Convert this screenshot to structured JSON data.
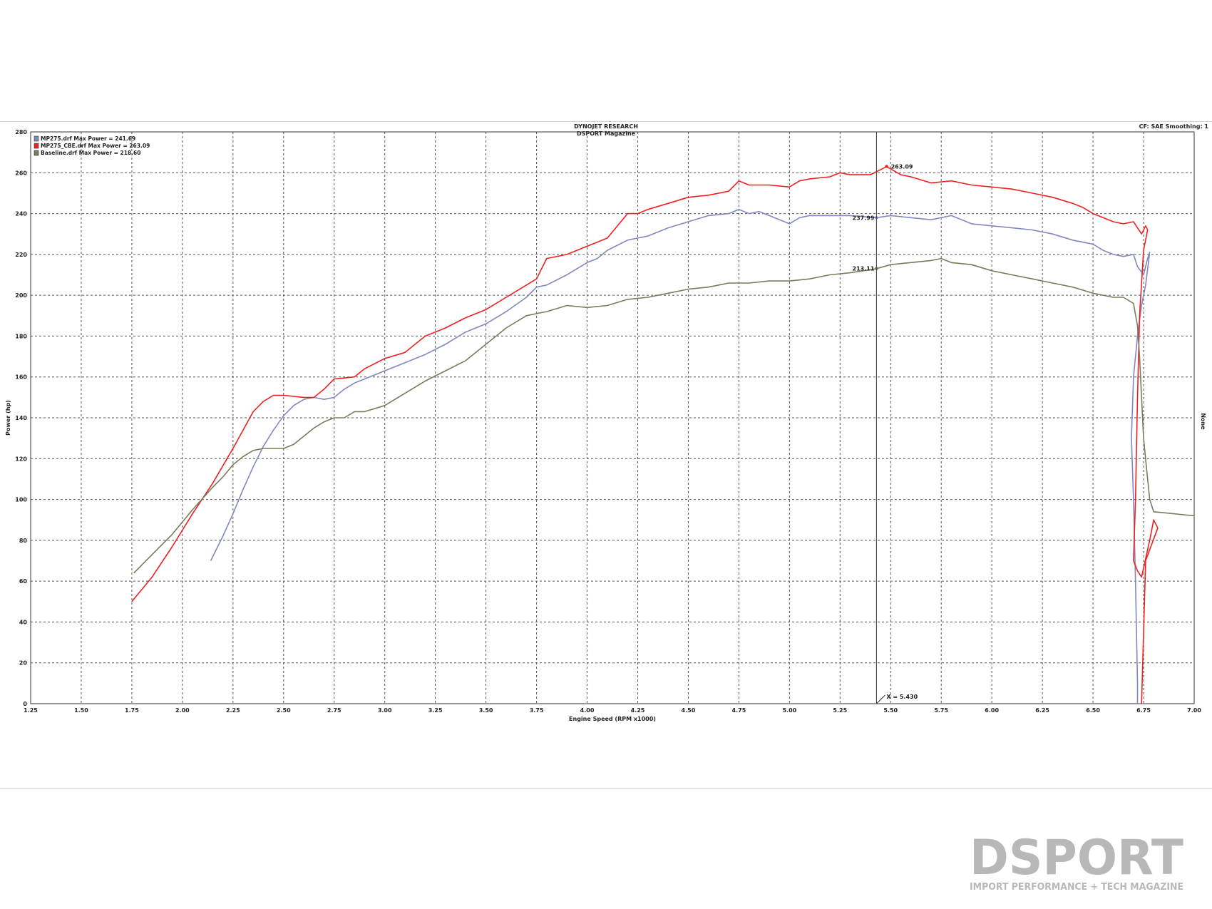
{
  "header": {
    "title_line1": "DYNOJET RESEARCH",
    "title_line2": "DSPORT Magazine",
    "settings": "CF: SAE  Smoothing: 1"
  },
  "brand": {
    "logo_text": "DSPORT",
    "tagline": "IMPORT PERFORMANCE + TECH MAGAZINE"
  },
  "colors": {
    "mp275": "#8088c0",
    "mp275_cbe": "#ee2020",
    "baseline": "#7a7a5c",
    "grid": "#555555"
  },
  "chart_data": {
    "type": "line",
    "title": "DYNOJET RESEARCH",
    "subtitle": "DSPORT Magazine",
    "xlabel": "Engine Speed (RPM x1000)",
    "ylabel": "Power (hp)",
    "right_label": "None",
    "xlim": [
      1.25,
      7.0
    ],
    "ylim": [
      0,
      280
    ],
    "xticks": [
      "1.25",
      "1.50",
      "1.75",
      "2.00",
      "2.25",
      "2.50",
      "2.75",
      "3.00",
      "3.25",
      "3.50",
      "3.75",
      "4.00",
      "4.25",
      "4.50",
      "4.75",
      "5.00",
      "5.25",
      "5.50",
      "5.75",
      "6.00",
      "6.25",
      "6.50",
      "6.75",
      "7.00"
    ],
    "yticks": [
      "0",
      "20",
      "40",
      "60",
      "80",
      "100",
      "120",
      "140",
      "160",
      "180",
      "200",
      "220",
      "240",
      "260",
      "280"
    ],
    "grid": true,
    "legend_position": "top-left",
    "cursor": {
      "x": 5.43,
      "label": "X = 5.430"
    },
    "series": [
      {
        "name": "MP275.drf Max Power = 241.69",
        "color_key": "mp275",
        "marker_label": "237.99",
        "marker": [
          5.43,
          238.0
        ],
        "points": [
          [
            2.14,
            70
          ],
          [
            2.2,
            82
          ],
          [
            2.25,
            93
          ],
          [
            2.3,
            105
          ],
          [
            2.35,
            116
          ],
          [
            2.4,
            126
          ],
          [
            2.45,
            134
          ],
          [
            2.5,
            141
          ],
          [
            2.55,
            146
          ],
          [
            2.6,
            149
          ],
          [
            2.65,
            150
          ],
          [
            2.7,
            149
          ],
          [
            2.75,
            150
          ],
          [
            2.8,
            154
          ],
          [
            2.85,
            157
          ],
          [
            2.9,
            159
          ],
          [
            3.0,
            163
          ],
          [
            3.1,
            167
          ],
          [
            3.2,
            171
          ],
          [
            3.3,
            176
          ],
          [
            3.4,
            182
          ],
          [
            3.5,
            186
          ],
          [
            3.6,
            192
          ],
          [
            3.7,
            199
          ],
          [
            3.75,
            204
          ],
          [
            3.8,
            205
          ],
          [
            3.9,
            210
          ],
          [
            4.0,
            216
          ],
          [
            4.05,
            218
          ],
          [
            4.1,
            222
          ],
          [
            4.2,
            227
          ],
          [
            4.3,
            229
          ],
          [
            4.4,
            233
          ],
          [
            4.5,
            236
          ],
          [
            4.6,
            239
          ],
          [
            4.7,
            240
          ],
          [
            4.75,
            242
          ],
          [
            4.8,
            240
          ],
          [
            4.85,
            241
          ],
          [
            4.9,
            239
          ],
          [
            5.0,
            235
          ],
          [
            5.05,
            238
          ],
          [
            5.1,
            239
          ],
          [
            5.2,
            239
          ],
          [
            5.3,
            239
          ],
          [
            5.43,
            238
          ],
          [
            5.5,
            239
          ],
          [
            5.6,
            238
          ],
          [
            5.7,
            237
          ],
          [
            5.8,
            239
          ],
          [
            5.9,
            235
          ],
          [
            6.0,
            234
          ],
          [
            6.1,
            233
          ],
          [
            6.2,
            232
          ],
          [
            6.3,
            230
          ],
          [
            6.4,
            227
          ],
          [
            6.5,
            225
          ],
          [
            6.55,
            222
          ],
          [
            6.6,
            220
          ],
          [
            6.65,
            219
          ],
          [
            6.7,
            220
          ],
          [
            6.72,
            214
          ],
          [
            6.75,
            210
          ],
          [
            6.77,
            218
          ],
          [
            6.78,
            221
          ],
          [
            6.76,
            205
          ],
          [
            6.74,
            195
          ],
          [
            6.72,
            180
          ],
          [
            6.7,
            160
          ],
          [
            6.69,
            130
          ],
          [
            6.7,
            100
          ],
          [
            6.71,
            60
          ],
          [
            6.72,
            10
          ],
          [
            6.72,
            0
          ]
        ]
      },
      {
        "name": "MP275_CBE.drf Max Power = 263.09",
        "color_key": "mp275_cbe",
        "marker_label": "263.09",
        "marker": [
          5.48,
          263.1
        ],
        "points": [
          [
            1.75,
            50
          ],
          [
            1.85,
            62
          ],
          [
            1.95,
            77
          ],
          [
            2.05,
            93
          ],
          [
            2.15,
            108
          ],
          [
            2.25,
            125
          ],
          [
            2.3,
            134
          ],
          [
            2.35,
            143
          ],
          [
            2.4,
            148
          ],
          [
            2.45,
            151
          ],
          [
            2.5,
            151
          ],
          [
            2.6,
            150
          ],
          [
            2.65,
            150
          ],
          [
            2.7,
            154
          ],
          [
            2.75,
            159
          ],
          [
            2.85,
            160
          ],
          [
            2.9,
            164
          ],
          [
            3.0,
            169
          ],
          [
            3.1,
            172
          ],
          [
            3.2,
            180
          ],
          [
            3.3,
            184
          ],
          [
            3.4,
            189
          ],
          [
            3.5,
            193
          ],
          [
            3.6,
            199
          ],
          [
            3.7,
            205
          ],
          [
            3.75,
            208
          ],
          [
            3.8,
            218
          ],
          [
            3.9,
            220
          ],
          [
            4.0,
            224
          ],
          [
            4.05,
            226
          ],
          [
            4.1,
            228
          ],
          [
            4.2,
            240
          ],
          [
            4.25,
            240
          ],
          [
            4.3,
            242
          ],
          [
            4.4,
            245
          ],
          [
            4.5,
            248
          ],
          [
            4.6,
            249
          ],
          [
            4.7,
            251
          ],
          [
            4.75,
            256
          ],
          [
            4.8,
            254
          ],
          [
            4.9,
            254
          ],
          [
            5.0,
            253
          ],
          [
            5.05,
            256
          ],
          [
            5.1,
            257
          ],
          [
            5.2,
            258
          ],
          [
            5.25,
            260
          ],
          [
            5.3,
            259
          ],
          [
            5.4,
            259
          ],
          [
            5.48,
            263
          ],
          [
            5.55,
            259
          ],
          [
            5.6,
            258
          ],
          [
            5.7,
            255
          ],
          [
            5.8,
            256
          ],
          [
            5.9,
            254
          ],
          [
            6.0,
            253
          ],
          [
            6.1,
            252
          ],
          [
            6.2,
            250
          ],
          [
            6.3,
            248
          ],
          [
            6.4,
            245
          ],
          [
            6.45,
            243
          ],
          [
            6.5,
            240
          ],
          [
            6.55,
            238
          ],
          [
            6.6,
            236
          ],
          [
            6.65,
            235
          ],
          [
            6.7,
            236
          ],
          [
            6.72,
            233
          ],
          [
            6.74,
            230
          ],
          [
            6.76,
            234
          ],
          [
            6.77,
            232
          ],
          [
            6.75,
            222
          ],
          [
            6.73,
            190
          ],
          [
            6.72,
            150
          ],
          [
            6.71,
            100
          ],
          [
            6.7,
            70
          ],
          [
            6.72,
            65
          ],
          [
            6.74,
            62
          ],
          [
            6.78,
            80
          ],
          [
            6.8,
            90
          ],
          [
            6.82,
            86
          ],
          [
            6.79,
            78
          ],
          [
            6.76,
            70
          ],
          [
            6.74,
            0
          ]
        ]
      },
      {
        "name": "Baseline.drf Max Power = 218.60",
        "color_key": "baseline",
        "marker_label": "213.11",
        "marker": [
          5.43,
          213.1
        ],
        "points": [
          [
            1.76,
            64
          ],
          [
            1.85,
            73
          ],
          [
            1.95,
            83
          ],
          [
            2.05,
            95
          ],
          [
            2.15,
            106
          ],
          [
            2.2,
            111
          ],
          [
            2.25,
            117
          ],
          [
            2.3,
            121
          ],
          [
            2.35,
            124
          ],
          [
            2.4,
            125
          ],
          [
            2.45,
            125
          ],
          [
            2.5,
            125
          ],
          [
            2.55,
            127
          ],
          [
            2.6,
            131
          ],
          [
            2.65,
            135
          ],
          [
            2.7,
            138
          ],
          [
            2.75,
            140
          ],
          [
            2.8,
            140
          ],
          [
            2.85,
            143
          ],
          [
            2.9,
            143
          ],
          [
            3.0,
            146
          ],
          [
            3.1,
            152
          ],
          [
            3.2,
            158
          ],
          [
            3.3,
            163
          ],
          [
            3.4,
            168
          ],
          [
            3.5,
            176
          ],
          [
            3.6,
            184
          ],
          [
            3.7,
            190
          ],
          [
            3.75,
            191
          ],
          [
            3.8,
            192
          ],
          [
            3.9,
            195
          ],
          [
            4.0,
            194
          ],
          [
            4.1,
            195
          ],
          [
            4.2,
            198
          ],
          [
            4.3,
            199
          ],
          [
            4.4,
            201
          ],
          [
            4.5,
            203
          ],
          [
            4.6,
            204
          ],
          [
            4.7,
            206
          ],
          [
            4.8,
            206
          ],
          [
            4.9,
            207
          ],
          [
            5.0,
            207
          ],
          [
            5.1,
            208
          ],
          [
            5.2,
            210
          ],
          [
            5.3,
            211
          ],
          [
            5.43,
            213
          ],
          [
            5.5,
            215
          ],
          [
            5.6,
            216
          ],
          [
            5.7,
            217
          ],
          [
            5.75,
            218
          ],
          [
            5.8,
            216
          ],
          [
            5.9,
            215
          ],
          [
            6.0,
            212
          ],
          [
            6.1,
            210
          ],
          [
            6.2,
            208
          ],
          [
            6.3,
            206
          ],
          [
            6.4,
            204
          ],
          [
            6.5,
            201
          ],
          [
            6.55,
            200
          ],
          [
            6.6,
            199
          ],
          [
            6.65,
            199
          ],
          [
            6.7,
            196
          ],
          [
            6.72,
            185
          ],
          [
            6.73,
            170
          ],
          [
            6.74,
            150
          ],
          [
            6.75,
            130
          ],
          [
            6.77,
            110
          ],
          [
            6.78,
            100
          ],
          [
            6.8,
            94
          ],
          [
            6.9,
            93
          ],
          [
            7.0,
            92
          ]
        ]
      }
    ]
  }
}
